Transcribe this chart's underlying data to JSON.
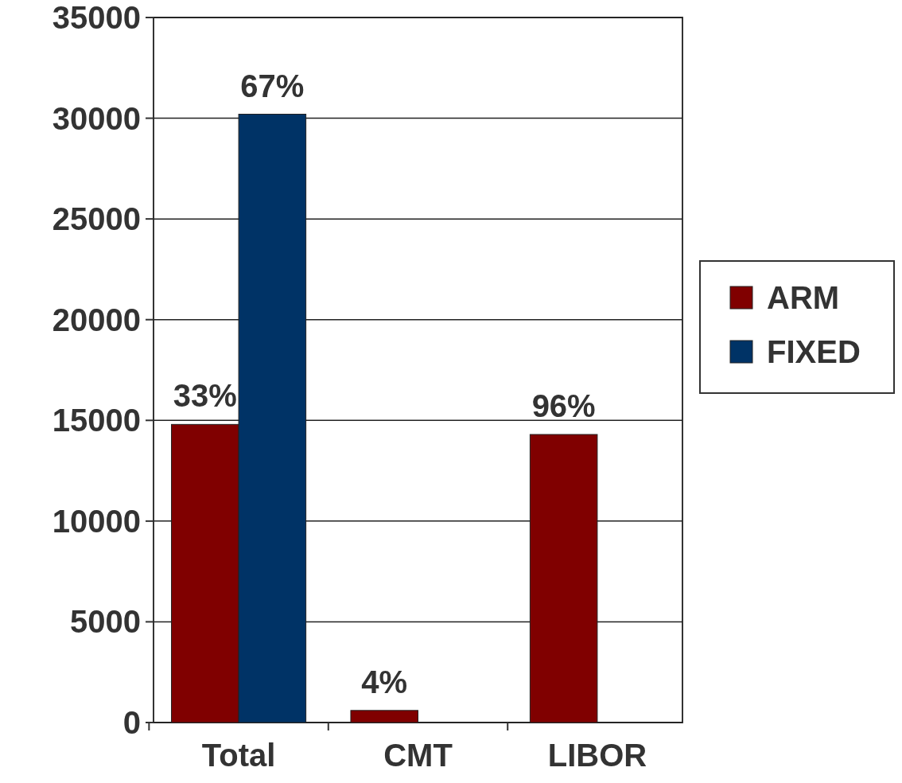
{
  "chart_data": {
    "type": "bar",
    "categories": [
      "Total",
      "CMT",
      "LIBOR"
    ],
    "series": [
      {
        "name": "ARM",
        "color": "#800000",
        "values": [
          14800,
          600,
          14300
        ]
      },
      {
        "name": "FIXED",
        "color": "#003366",
        "values": [
          30200,
          null,
          null
        ]
      }
    ],
    "annotations": [
      {
        "text": "33%",
        "x": "Total",
        "y": 14800
      },
      {
        "text": "67%",
        "x": "Total",
        "y": 30200
      },
      {
        "text": "4%",
        "x": "CMT",
        "y": 600
      },
      {
        "text": "96%",
        "x": "LIBOR",
        "y": 14300
      }
    ],
    "ylim": [
      0,
      35000
    ],
    "yticks": [
      0,
      5000,
      10000,
      15000,
      20000,
      25000,
      30000,
      35000
    ],
    "grid": "y",
    "legend": "right"
  }
}
